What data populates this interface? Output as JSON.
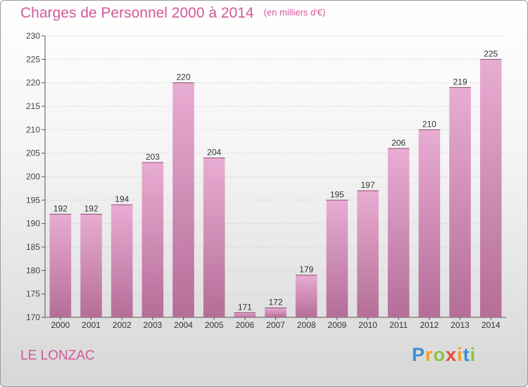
{
  "chart_data": {
    "type": "bar",
    "title": "Charges de Personnel 2000 à 2014",
    "subtitle": "(en milliers d'€)",
    "xlabel": "",
    "ylabel": "",
    "categories": [
      "2000",
      "2001",
      "2002",
      "2003",
      "2004",
      "2005",
      "2006",
      "2007",
      "2008",
      "2009",
      "2010",
      "2011",
      "2012",
      "2013",
      "2014"
    ],
    "values": [
      192,
      192,
      194,
      203,
      220,
      204,
      171,
      172,
      179,
      195,
      197,
      206,
      210,
      219,
      225
    ],
    "ylim": [
      170,
      230
    ],
    "yticks": [
      170,
      175,
      180,
      185,
      190,
      195,
      200,
      205,
      210,
      215,
      220,
      225,
      230
    ],
    "grid": true,
    "bar_color": "#d98cbd",
    "title_color": "#d3589a"
  },
  "commune": "LE LONZAC",
  "logo": {
    "letters": [
      "P",
      "r",
      "o",
      "x",
      "i",
      "t",
      "i"
    ],
    "colors": [
      "#3a8fd6",
      "#f0a020",
      "#8bc53f",
      "#e94b3c",
      "#f0a020",
      "#3a8fd6",
      "#8bc53f"
    ]
  }
}
